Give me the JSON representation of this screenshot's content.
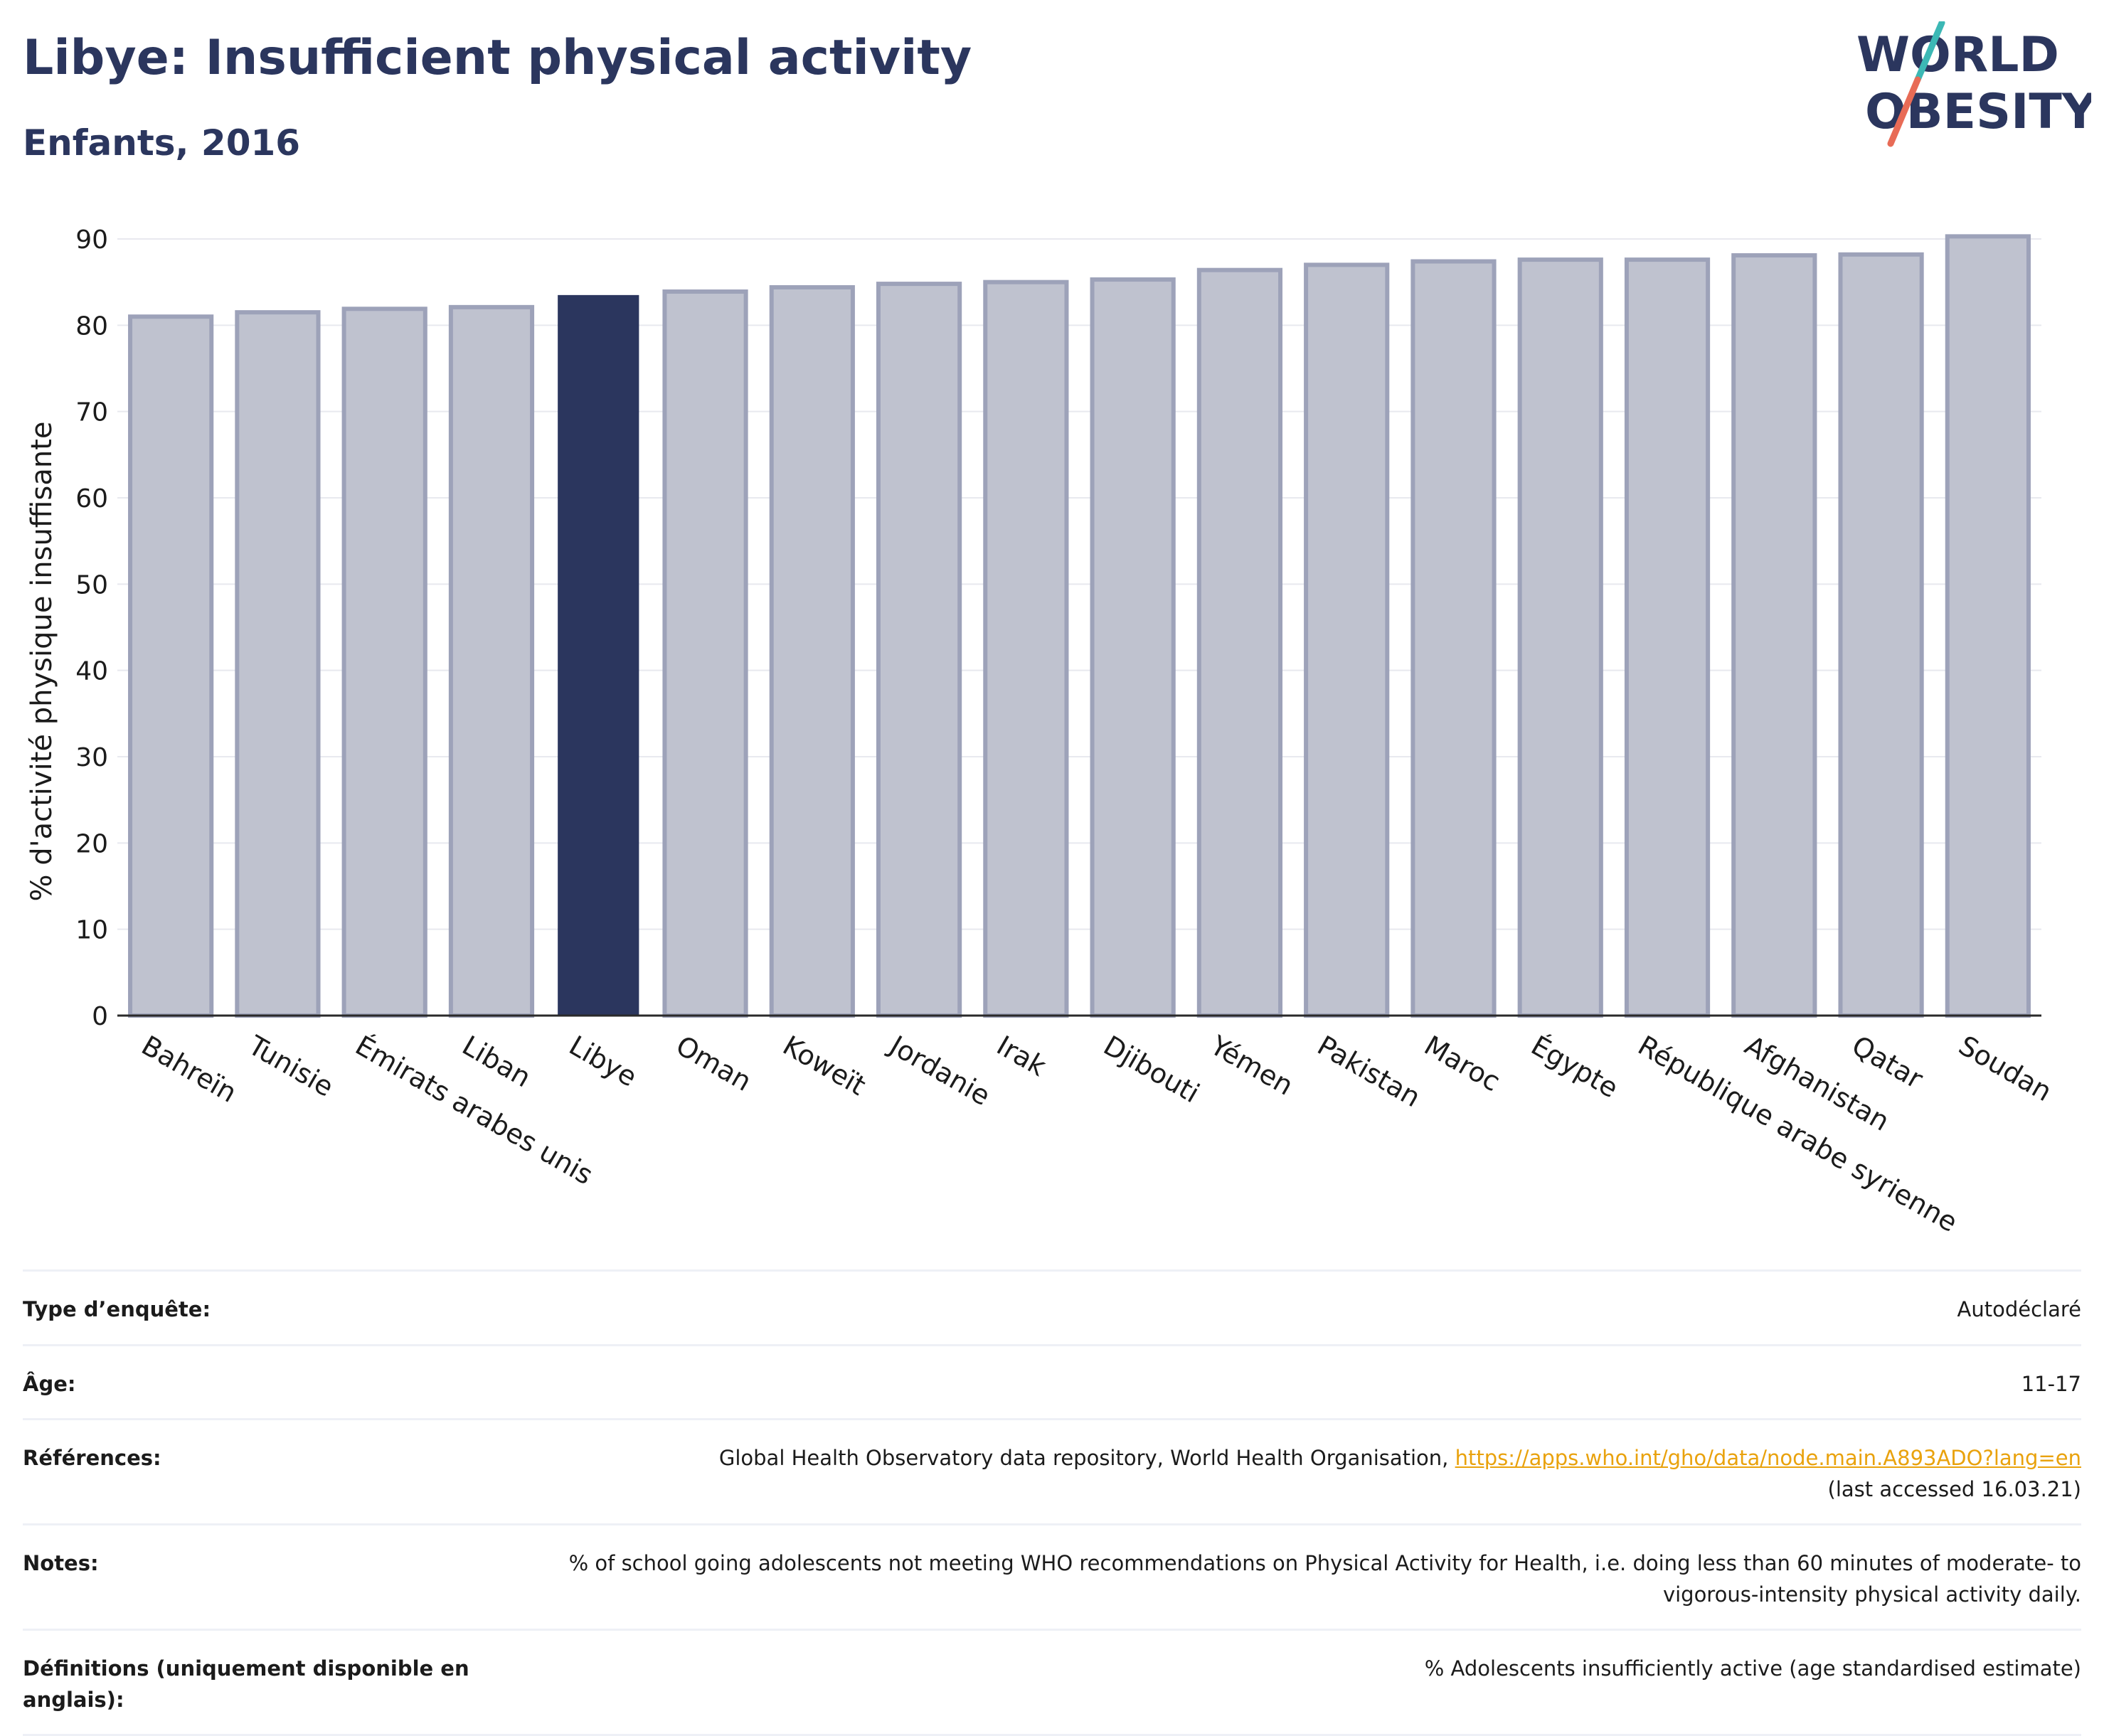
{
  "header": {
    "title": "Libye: Insufficient physical activity",
    "subtitle": "Enfants, 2016"
  },
  "logo": {
    "line1": "WORLD",
    "line2": "OBESITY"
  },
  "colors": {
    "highlight": "#2b365e",
    "bar": "#bfc2cf",
    "bar_edge": "#9da2b9",
    "accent_teal": "#3cb8b5",
    "accent_coral": "#e86b56",
    "link": "#e9a20d"
  },
  "chart_data": {
    "type": "bar",
    "title": "Libye: Insufficient physical activity",
    "subtitle": "Enfants, 2016",
    "xlabel": "",
    "ylabel": "% d'activité physique insuffisante",
    "ylim": [
      0,
      90
    ],
    "yticks": [
      0,
      10,
      20,
      30,
      40,
      50,
      60,
      70,
      80,
      90
    ],
    "grid": true,
    "highlight": "Libye",
    "categories": [
      "Bahreïn",
      "Tunisie",
      "Émirats arabes unis",
      "Liban",
      "Libye",
      "Oman",
      "Koweït",
      "Jordanie",
      "Irak",
      "Djibouti",
      "Yémen",
      "Pakistan",
      "Maroc",
      "Égypte",
      "République arabe syrienne",
      "Afghanistan",
      "Qatar",
      "Soudan"
    ],
    "values": [
      81.0,
      81.5,
      81.9,
      82.1,
      83.5,
      83.9,
      84.4,
      84.8,
      85.0,
      85.3,
      86.4,
      87.0,
      87.4,
      87.6,
      87.6,
      88.1,
      88.2,
      90.3
    ]
  },
  "info_table": [
    {
      "key": "Type d’enquête:",
      "value": "Autodéclaré"
    },
    {
      "key": "Âge:",
      "value": "11-17"
    },
    {
      "key": "Références:",
      "value": "Global Health Observatory data repository, World Health Organisation, ",
      "link": "https://apps.who.int/gho/data/node.main.A893ADO?lang=en",
      "suffix": "(last accessed 16.03.21)"
    },
    {
      "key": "Notes:",
      "value": "% of school going adolescents not meeting WHO recommendations on Physical Activity for Health, i.e. doing less than 60 minutes of moderate- to vigorous-intensity physical activity daily."
    },
    {
      "key": "Définitions (uniquement disponible en anglais):",
      "value": "% Adolescents insufficiently active (age standardised estimate)"
    }
  ]
}
